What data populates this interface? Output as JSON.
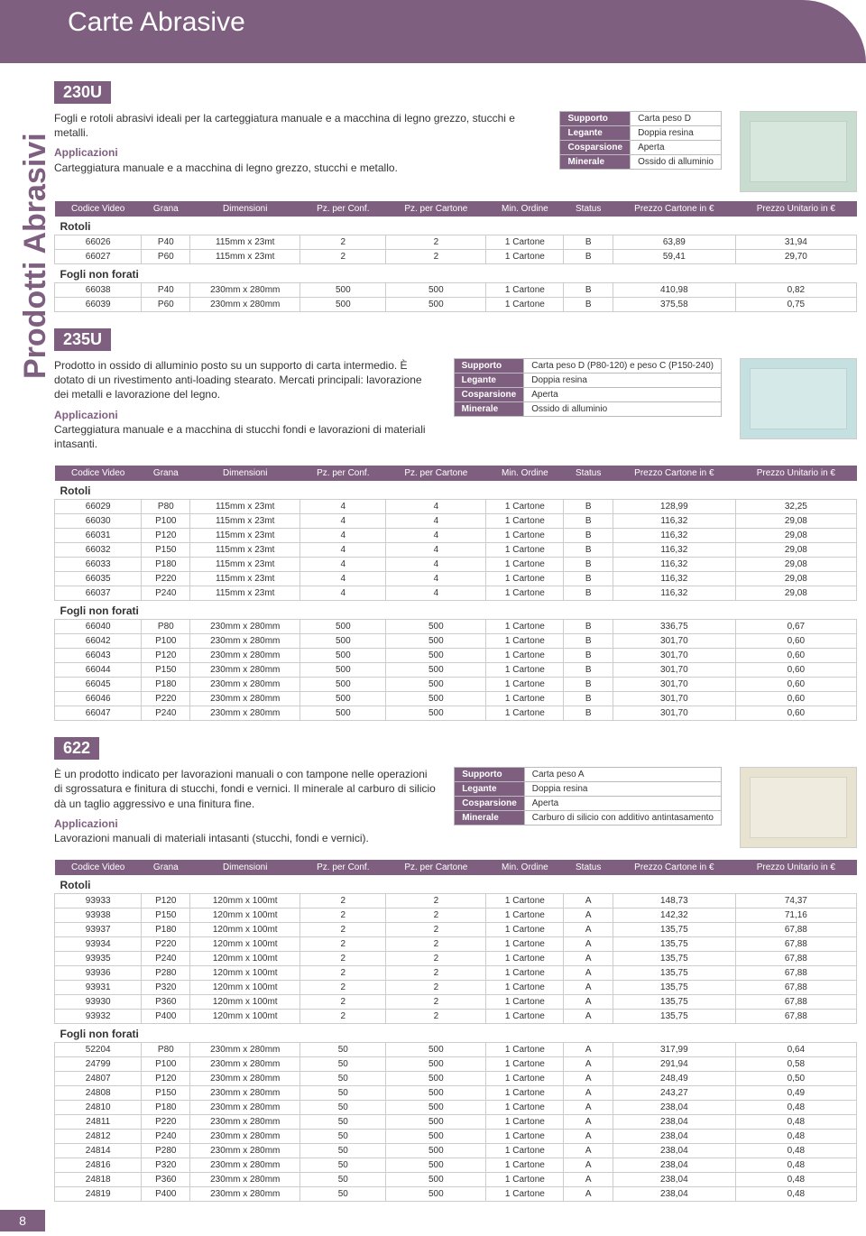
{
  "page_title": "Carte Abrasive",
  "side_label": "Prodotti Abrasivi",
  "page_number": "8",
  "columns": [
    "Codice Video",
    "Grana",
    "Dimensioni",
    "Pz. per Conf.",
    "Pz. per Cartone",
    "Min. Ordine",
    "Status",
    "Prezzo Cartone in €",
    "Prezzo Unitario in €"
  ],
  "products": [
    {
      "code": "230U",
      "description": "Fogli e rotoli abrasivi ideali per la carteggiatura manuale e a macchina di legno grezzo, stucchi e metalli.",
      "app_label": "Applicazioni",
      "applications": "Carteggiatura manuale e a macchina di legno grezzo, stucchi e metallo.",
      "specs": [
        [
          "Supporto",
          "Carta peso D"
        ],
        [
          "Legante",
          "Doppia resina"
        ],
        [
          "Cosparsione",
          "Aperta"
        ],
        [
          "Minerale",
          "Ossido di alluminio"
        ]
      ],
      "image_bg": "#c8ddd0",
      "groups": [
        {
          "title": "Rotoli",
          "rows": [
            [
              "66026",
              "P40",
              "115mm x 23mt",
              "2",
              "2",
              "1 Cartone",
              "B",
              "63,89",
              "31,94"
            ],
            [
              "66027",
              "P60",
              "115mm x 23mt",
              "2",
              "2",
              "1 Cartone",
              "B",
              "59,41",
              "29,70"
            ]
          ]
        },
        {
          "title": "Fogli non forati",
          "rows": [
            [
              "66038",
              "P40",
              "230mm x 280mm",
              "500",
              "500",
              "1 Cartone",
              "B",
              "410,98",
              "0,82"
            ],
            [
              "66039",
              "P60",
              "230mm x 280mm",
              "500",
              "500",
              "1 Cartone",
              "B",
              "375,58",
              "0,75"
            ]
          ]
        }
      ]
    },
    {
      "code": "235U",
      "description": "Prodotto in ossido di alluminio posto su un supporto di carta intermedio. È dotato di un rivestimento anti-loading stearato. Mercati principali: lavorazione dei metalli e lavorazione del legno.",
      "app_label": "Applicazioni",
      "applications": "Carteggiatura manuale e a macchina di stucchi fondi e lavorazioni di materiali intasanti.",
      "specs": [
        [
          "Supporto",
          "Carta peso D (P80-120) e peso C (P150-240)"
        ],
        [
          "Legante",
          "Doppia resina"
        ],
        [
          "Cosparsione",
          "Aperta"
        ],
        [
          "Minerale",
          "Ossido di alluminio"
        ]
      ],
      "image_bg": "#c4e0e0",
      "groups": [
        {
          "title": "Rotoli",
          "rows": [
            [
              "66029",
              "P80",
              "115mm x 23mt",
              "4",
              "4",
              "1 Cartone",
              "B",
              "128,99",
              "32,25"
            ],
            [
              "66030",
              "P100",
              "115mm x 23mt",
              "4",
              "4",
              "1 Cartone",
              "B",
              "116,32",
              "29,08"
            ],
            [
              "66031",
              "P120",
              "115mm x 23mt",
              "4",
              "4",
              "1 Cartone",
              "B",
              "116,32",
              "29,08"
            ],
            [
              "66032",
              "P150",
              "115mm x 23mt",
              "4",
              "4",
              "1 Cartone",
              "B",
              "116,32",
              "29,08"
            ],
            [
              "66033",
              "P180",
              "115mm x 23mt",
              "4",
              "4",
              "1 Cartone",
              "B",
              "116,32",
              "29,08"
            ],
            [
              "66035",
              "P220",
              "115mm x 23mt",
              "4",
              "4",
              "1 Cartone",
              "B",
              "116,32",
              "29,08"
            ],
            [
              "66037",
              "P240",
              "115mm x 23mt",
              "4",
              "4",
              "1 Cartone",
              "B",
              "116,32",
              "29,08"
            ]
          ]
        },
        {
          "title": "Fogli non forati",
          "rows": [
            [
              "66040",
              "P80",
              "230mm x 280mm",
              "500",
              "500",
              "1 Cartone",
              "B",
              "336,75",
              "0,67"
            ],
            [
              "66042",
              "P100",
              "230mm x 280mm",
              "500",
              "500",
              "1 Cartone",
              "B",
              "301,70",
              "0,60"
            ],
            [
              "66043",
              "P120",
              "230mm x 280mm",
              "500",
              "500",
              "1 Cartone",
              "B",
              "301,70",
              "0,60"
            ],
            [
              "66044",
              "P150",
              "230mm x 280mm",
              "500",
              "500",
              "1 Cartone",
              "B",
              "301,70",
              "0,60"
            ],
            [
              "66045",
              "P180",
              "230mm x 280mm",
              "500",
              "500",
              "1 Cartone",
              "B",
              "301,70",
              "0,60"
            ],
            [
              "66046",
              "P220",
              "230mm x 280mm",
              "500",
              "500",
              "1 Cartone",
              "B",
              "301,70",
              "0,60"
            ],
            [
              "66047",
              "P240",
              "230mm x 280mm",
              "500",
              "500",
              "1 Cartone",
              "B",
              "301,70",
              "0,60"
            ]
          ]
        }
      ]
    },
    {
      "code": "622",
      "description": "È un prodotto indicato per lavorazioni manuali o con tampone nelle operazioni di sgrossatura e finitura di stucchi, fondi e vernici. Il minerale al carburo di silicio dà un taglio aggressivo e una finitura fine.",
      "app_label": "Applicazioni",
      "applications": "Lavorazioni manuali di materiali intasanti (stucchi, fondi e vernici).",
      "specs": [
        [
          "Supporto",
          "Carta peso A"
        ],
        [
          "Legante",
          "Doppia resina"
        ],
        [
          "Cosparsione",
          "Aperta"
        ],
        [
          "Minerale",
          "Carburo di silicio con additivo antintasamento"
        ]
      ],
      "image_bg": "#e8e2d0",
      "groups": [
        {
          "title": "Rotoli",
          "rows": [
            [
              "93933",
              "P120",
              "120mm x 100mt",
              "2",
              "2",
              "1 Cartone",
              "A",
              "148,73",
              "74,37"
            ],
            [
              "93938",
              "P150",
              "120mm x 100mt",
              "2",
              "2",
              "1 Cartone",
              "A",
              "142,32",
              "71,16"
            ],
            [
              "93937",
              "P180",
              "120mm x 100mt",
              "2",
              "2",
              "1 Cartone",
              "A",
              "135,75",
              "67,88"
            ],
            [
              "93934",
              "P220",
              "120mm x 100mt",
              "2",
              "2",
              "1 Cartone",
              "A",
              "135,75",
              "67,88"
            ],
            [
              "93935",
              "P240",
              "120mm x 100mt",
              "2",
              "2",
              "1 Cartone",
              "A",
              "135,75",
              "67,88"
            ],
            [
              "93936",
              "P280",
              "120mm x 100mt",
              "2",
              "2",
              "1 Cartone",
              "A",
              "135,75",
              "67,88"
            ],
            [
              "93931",
              "P320",
              "120mm x 100mt",
              "2",
              "2",
              "1 Cartone",
              "A",
              "135,75",
              "67,88"
            ],
            [
              "93930",
              "P360",
              "120mm x 100mt",
              "2",
              "2",
              "1 Cartone",
              "A",
              "135,75",
              "67,88"
            ],
            [
              "93932",
              "P400",
              "120mm x 100mt",
              "2",
              "2",
              "1 Cartone",
              "A",
              "135,75",
              "67,88"
            ]
          ]
        },
        {
          "title": "Fogli non forati",
          "rows": [
            [
              "52204",
              "P80",
              "230mm x 280mm",
              "50",
              "500",
              "1 Cartone",
              "A",
              "317,99",
              "0,64"
            ],
            [
              "24799",
              "P100",
              "230mm x 280mm",
              "50",
              "500",
              "1 Cartone",
              "A",
              "291,94",
              "0,58"
            ],
            [
              "24807",
              "P120",
              "230mm x 280mm",
              "50",
              "500",
              "1 Cartone",
              "A",
              "248,49",
              "0,50"
            ],
            [
              "24808",
              "P150",
              "230mm x 280mm",
              "50",
              "500",
              "1 Cartone",
              "A",
              "243,27",
              "0,49"
            ],
            [
              "24810",
              "P180",
              "230mm x 280mm",
              "50",
              "500",
              "1 Cartone",
              "A",
              "238,04",
              "0,48"
            ],
            [
              "24811",
              "P220",
              "230mm x 280mm",
              "50",
              "500",
              "1 Cartone",
              "A",
              "238,04",
              "0,48"
            ],
            [
              "24812",
              "P240",
              "230mm x 280mm",
              "50",
              "500",
              "1 Cartone",
              "A",
              "238,04",
              "0,48"
            ],
            [
              "24814",
              "P280",
              "230mm x 280mm",
              "50",
              "500",
              "1 Cartone",
              "A",
              "238,04",
              "0,48"
            ],
            [
              "24816",
              "P320",
              "230mm x 280mm",
              "50",
              "500",
              "1 Cartone",
              "A",
              "238,04",
              "0,48"
            ],
            [
              "24818",
              "P360",
              "230mm x 280mm",
              "50",
              "500",
              "1 Cartone",
              "A",
              "238,04",
              "0,48"
            ],
            [
              "24819",
              "P400",
              "230mm x 280mm",
              "50",
              "500",
              "1 Cartone",
              "A",
              "238,04",
              "0,48"
            ]
          ]
        }
      ]
    }
  ]
}
